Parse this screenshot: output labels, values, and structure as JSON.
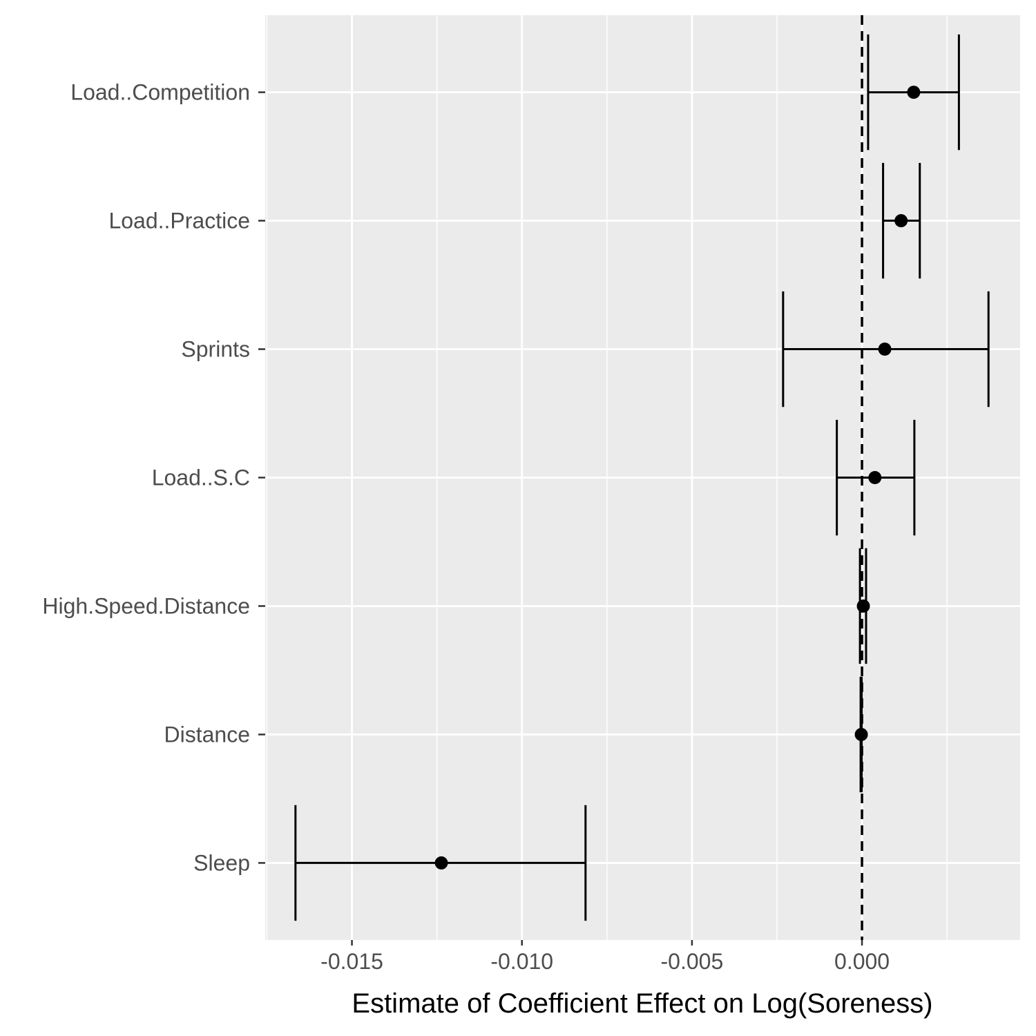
{
  "chart_data": {
    "type": "coefficient-plot",
    "title": "",
    "xlabel": "Estimate of Coefficient Effect on Log(Soreness)",
    "ylabel": "",
    "xlim": [
      -0.01755,
      0.00465
    ],
    "x_ticks": [
      {
        "value": -0.015,
        "label": "-0.015"
      },
      {
        "value": -0.01,
        "label": "-0.010"
      },
      {
        "value": -0.005,
        "label": "-0.005"
      },
      {
        "value": 0.0,
        "label": "0.000"
      }
    ],
    "reference_line": {
      "x": 0,
      "style": "dashed"
    },
    "grid": true,
    "legend": "none",
    "colors": {
      "panel": "#ebebeb",
      "grid": "#ffffff",
      "mark": "#000000",
      "tick_text": "#4d4d4d"
    },
    "categories": [
      "Load..Competition",
      "Load..Practice",
      "Sprints",
      "Load..S.C",
      "High.Speed.Distance",
      "Distance",
      "Sleep"
    ],
    "estimates": [
      0.00152,
      0.00115,
      0.00067,
      0.00038,
      4e-05,
      -2e-05,
      -0.01237
    ],
    "lower": [
      0.00018,
      0.00062,
      -0.00232,
      -0.00074,
      -6e-05,
      -4e-05,
      -0.01666
    ],
    "upper": [
      0.00285,
      0.0017,
      0.00372,
      0.00154,
      0.00012,
      -1e-05,
      -0.00813
    ]
  }
}
